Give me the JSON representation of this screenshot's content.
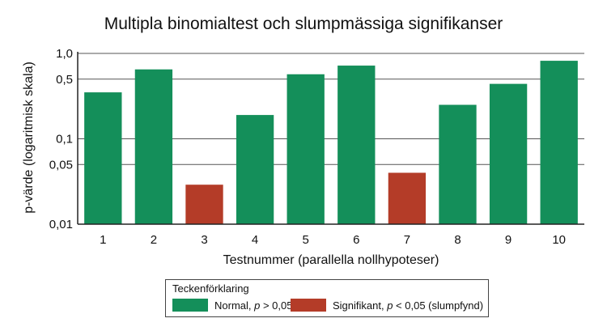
{
  "chart_data": {
    "type": "bar",
    "title": "Multipla binomialtest och slumpmässiga signifikanser",
    "xlabel": "Testnummer (parallella nollhypoteser)",
    "ylabel": "p-värde (logaritmisk skala)",
    "yscale": "log",
    "ylim": [
      0.01,
      1.0
    ],
    "yticks": [
      0.01,
      0.05,
      0.1,
      0.5,
      1.0
    ],
    "ytick_labels": [
      "0,01",
      "0,05",
      "0,1",
      "0,5",
      "1,0"
    ],
    "grid": "horizontal",
    "categories": [
      "1",
      "2",
      "3",
      "4",
      "5",
      "6",
      "7",
      "8",
      "9",
      "10"
    ],
    "values": [
      0.35,
      0.65,
      0.029,
      0.19,
      0.57,
      0.72,
      0.04,
      0.25,
      0.44,
      0.82
    ],
    "significant": [
      false,
      false,
      true,
      false,
      false,
      false,
      true,
      false,
      false,
      false
    ],
    "colors": {
      "normal": "#148f5a",
      "significant": "#b43c28"
    },
    "legend": {
      "title": "Teckenförklaring",
      "placement": "bottom-center",
      "entries": [
        {
          "key": "normal",
          "prefix": "Normal, ",
          "p": "p",
          "suffix": " > 0,05"
        },
        {
          "key": "significant",
          "prefix": "Signifikant, ",
          "p": "p",
          "suffix": " < 0,05 (slumpfynd)"
        }
      ]
    }
  }
}
